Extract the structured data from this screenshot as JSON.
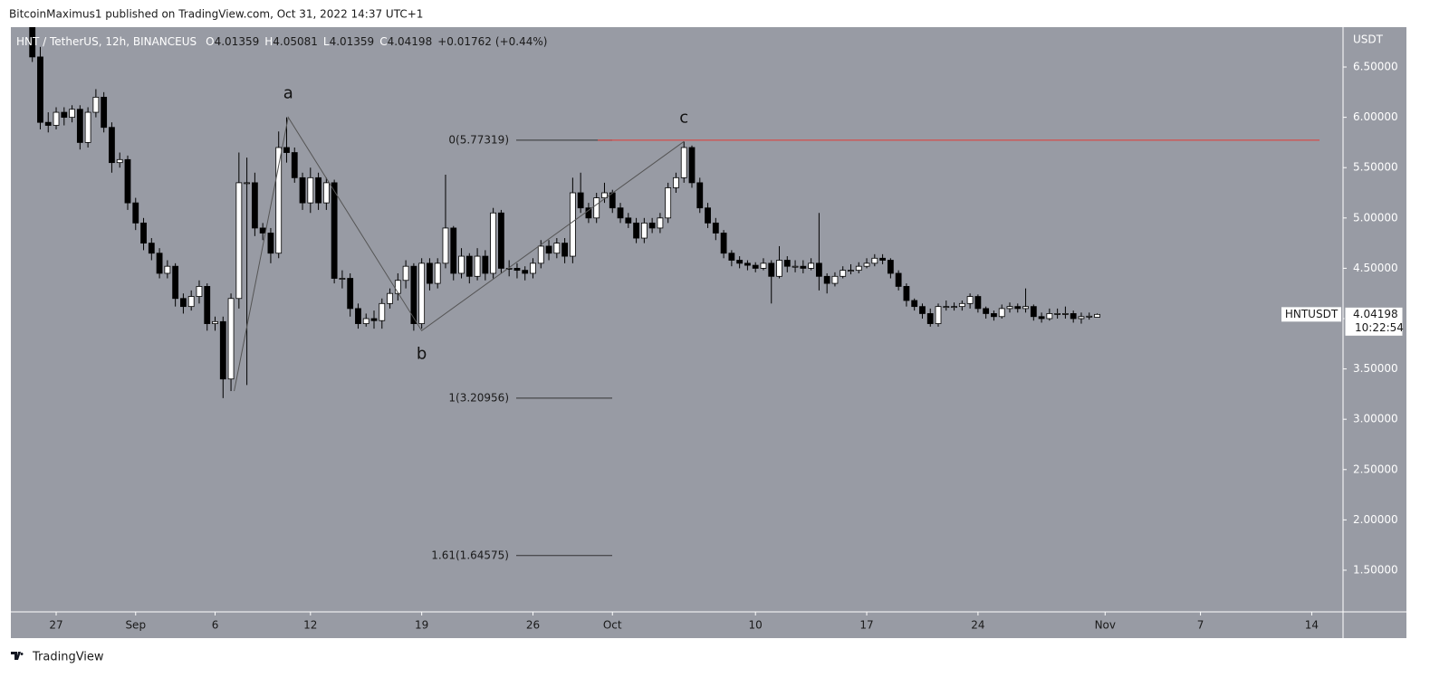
{
  "header": {
    "publisher": "BitcoinMaximus1 published on TradingView.com, Oct 31, 2022 14:37 UTC+1"
  },
  "footer": {
    "brand": "TradingView"
  },
  "chart_data": {
    "type": "candlestick",
    "title": "HNT / TetherUS, 12h, BINANCEUS",
    "ohlc_labels": [
      "O",
      "H",
      "L",
      "C"
    ],
    "change": "+0.01762",
    "change_pct": "(+0.44%)",
    "y_unit": "USDT",
    "symbol": "HNTUSDT",
    "countdown": "10:22:54",
    "up_color": "#ffffff",
    "down_color": "#000000",
    "x": [
      -1.5,
      -1,
      -0.5,
      0,
      0.5,
      1,
      1.5,
      2,
      2.5,
      3,
      3.5,
      4,
      4.5,
      5,
      5.5,
      6,
      6.5,
      7,
      7.5,
      8,
      8.5,
      9,
      9.5,
      10,
      10.5,
      11,
      11.5,
      12,
      12.5,
      13,
      13.5,
      14,
      14.5,
      15,
      15.5,
      16,
      16.5,
      17,
      17.5,
      18,
      18.5,
      19,
      19.5,
      20,
      20.5,
      21,
      21.5,
      22,
      22.5,
      23,
      23.5,
      24,
      24.5,
      25,
      25.5,
      26,
      26.5,
      27,
      27.5,
      28,
      28.5,
      29,
      29.5,
      30,
      30.5,
      31,
      31.5,
      32,
      32.5,
      33,
      33.5,
      34,
      34.5,
      35,
      35.5,
      36,
      36.5,
      37,
      37.5,
      38,
      38.5,
      39,
      39.5,
      40,
      40.5,
      41,
      41.5,
      42,
      42.5,
      43,
      43.5,
      44,
      44.5,
      45,
      45.5,
      46,
      46.5,
      47,
      47.5,
      48,
      48.5,
      49,
      49.5,
      50,
      50.5,
      51,
      51.5,
      52,
      52.5,
      53,
      53.5,
      54,
      54.5,
      55,
      55.5,
      56,
      56.5,
      57,
      57.5,
      58,
      58.5,
      59,
      59.5,
      60,
      60.5,
      61,
      61.5,
      62,
      62.5,
      63,
      63.5,
      64,
      64.5,
      65,
      65.5
    ],
    "open": [
      6.95,
      6.6,
      5.95,
      5.92,
      6.05,
      6.0,
      6.08,
      5.75,
      6.05,
      6.2,
      5.9,
      5.55,
      5.58,
      5.15,
      4.95,
      4.75,
      4.65,
      4.45,
      4.52,
      4.2,
      4.12,
      4.22,
      4.32,
      3.95,
      3.97,
      3.4,
      4.2,
      5.35,
      5.35,
      4.9,
      4.85,
      4.65,
      5.7,
      5.65,
      5.4,
      5.15,
      5.4,
      5.15,
      5.35,
      4.4,
      4.4,
      4.1,
      3.95,
      4.0,
      3.98,
      4.15,
      4.25,
      4.38,
      4.52,
      3.95,
      4.55,
      4.35,
      4.55,
      4.9,
      4.45,
      4.62,
      4.42,
      4.62,
      4.45,
      5.05,
      4.5,
      4.5,
      4.48,
      4.45,
      4.55,
      4.72,
      4.65,
      4.75,
      4.62,
      5.25,
      5.1,
      5.0,
      5.2,
      5.25,
      5.1,
      5.0,
      4.95,
      4.8,
      4.95,
      4.9,
      5.0,
      5.3,
      5.4,
      5.7,
      5.35,
      5.1,
      4.95,
      4.85,
      4.65,
      4.58,
      4.55,
      4.53,
      4.5,
      4.55,
      4.42,
      4.58,
      4.52,
      4.52,
      4.5,
      4.55,
      4.42,
      4.35,
      4.42,
      4.48,
      4.48,
      4.52,
      4.55,
      4.6,
      4.58,
      4.45,
      4.32,
      4.18,
      4.12,
      4.05,
      3.95,
      4.12,
      4.12,
      4.12,
      4.15,
      4.22,
      4.1,
      4.05,
      4.02,
      4.1,
      4.12,
      4.1,
      4.12,
      4.02,
      4.0,
      4.05,
      4.05,
      4.05,
      4.0,
      4.02,
      4.01359
    ],
    "high": [
      7.0,
      6.7,
      6.05,
      6.1,
      6.1,
      6.12,
      6.12,
      6.1,
      6.28,
      6.25,
      5.95,
      5.65,
      5.62,
      5.2,
      5.0,
      4.8,
      4.7,
      4.58,
      4.55,
      4.25,
      4.28,
      4.38,
      4.35,
      4.02,
      4.02,
      4.25,
      5.65,
      5.6,
      5.45,
      4.95,
      4.9,
      5.86,
      6.0,
      5.7,
      5.45,
      5.5,
      5.45,
      5.4,
      5.38,
      4.48,
      4.45,
      4.15,
      4.05,
      4.08,
      4.2,
      4.3,
      4.45,
      4.58,
      4.55,
      4.6,
      4.6,
      4.6,
      5.43,
      4.92,
      4.7,
      4.65,
      4.7,
      4.68,
      5.1,
      5.08,
      4.58,
      4.55,
      4.52,
      4.6,
      4.78,
      4.78,
      4.8,
      4.8,
      5.4,
      5.45,
      5.15,
      5.25,
      5.35,
      5.28,
      5.15,
      5.05,
      5.0,
      5.0,
      5.0,
      5.05,
      5.35,
      5.45,
      5.76,
      5.72,
      5.4,
      5.15,
      5.0,
      4.88,
      4.68,
      4.62,
      4.58,
      4.56,
      4.6,
      4.58,
      4.72,
      4.62,
      4.58,
      4.58,
      4.6,
      5.05,
      4.45,
      4.46,
      4.52,
      4.54,
      4.56,
      4.6,
      4.64,
      4.64,
      4.6,
      4.48,
      4.35,
      4.2,
      4.15,
      4.1,
      4.15,
      4.18,
      4.16,
      4.18,
      4.25,
      4.24,
      4.12,
      4.08,
      4.14,
      4.16,
      4.15,
      4.3,
      4.14,
      4.06,
      4.1,
      4.1,
      4.12,
      4.08,
      4.06,
      4.06,
      4.05081
    ],
    "low": [
      6.55,
      5.88,
      5.85,
      5.88,
      5.92,
      5.95,
      5.68,
      5.7,
      6.0,
      5.85,
      5.45,
      5.5,
      5.08,
      4.88,
      4.68,
      4.58,
      4.4,
      4.4,
      4.12,
      4.05,
      4.08,
      4.15,
      3.88,
      3.88,
      3.21,
      3.28,
      4.1,
      3.34,
      4.82,
      4.78,
      4.55,
      4.6,
      5.55,
      5.35,
      5.08,
      5.05,
      5.08,
      5.08,
      4.35,
      4.3,
      4.02,
      3.9,
      3.92,
      3.9,
      3.9,
      4.1,
      4.18,
      4.3,
      3.88,
      3.9,
      4.28,
      4.3,
      4.5,
      4.38,
      4.4,
      4.35,
      4.38,
      4.38,
      4.4,
      4.45,
      4.42,
      4.4,
      4.38,
      4.4,
      4.5,
      4.58,
      4.6,
      4.55,
      4.55,
      5.05,
      4.95,
      4.95,
      5.15,
      5.05,
      4.95,
      4.9,
      4.75,
      4.75,
      4.85,
      4.85,
      4.95,
      5.25,
      5.35,
      5.3,
      5.05,
      4.9,
      4.78,
      4.6,
      4.52,
      4.5,
      4.48,
      4.46,
      4.48,
      4.15,
      4.4,
      4.46,
      4.46,
      4.45,
      4.48,
      4.28,
      4.25,
      4.32,
      4.4,
      4.44,
      4.45,
      4.5,
      4.52,
      4.54,
      4.4,
      4.28,
      4.12,
      4.08,
      4.0,
      3.92,
      3.92,
      4.08,
      4.08,
      4.08,
      4.1,
      4.06,
      4.0,
      3.98,
      4.0,
      4.06,
      4.06,
      4.06,
      3.98,
      3.96,
      3.98,
      4.0,
      4.0,
      3.96,
      3.95,
      3.99,
      4.01359
    ],
    "close": [
      6.6,
      5.95,
      5.92,
      6.05,
      6.0,
      6.08,
      5.75,
      6.05,
      6.2,
      5.9,
      5.55,
      5.58,
      5.15,
      4.95,
      4.75,
      4.65,
      4.45,
      4.52,
      4.2,
      4.12,
      4.22,
      4.32,
      3.95,
      3.97,
      3.4,
      4.2,
      5.35,
      5.35,
      4.9,
      4.85,
      4.65,
      5.7,
      5.65,
      5.4,
      5.15,
      5.4,
      5.15,
      5.35,
      4.4,
      4.4,
      4.1,
      3.95,
      4.0,
      3.98,
      4.15,
      4.25,
      4.38,
      4.52,
      3.95,
      4.55,
      4.35,
      4.55,
      4.9,
      4.45,
      4.62,
      4.42,
      4.62,
      4.45,
      5.05,
      4.5,
      4.5,
      4.48,
      4.45,
      4.55,
      4.72,
      4.65,
      4.75,
      4.62,
      5.25,
      5.1,
      5.0,
      5.2,
      5.25,
      5.1,
      5.0,
      4.95,
      4.8,
      4.95,
      4.9,
      5.0,
      5.3,
      5.4,
      5.7,
      5.35,
      5.1,
      4.95,
      4.85,
      4.65,
      4.58,
      4.55,
      4.53,
      4.5,
      4.55,
      4.42,
      4.58,
      4.52,
      4.52,
      4.5,
      4.55,
      4.42,
      4.35,
      4.42,
      4.48,
      4.48,
      4.52,
      4.55,
      4.6,
      4.58,
      4.45,
      4.32,
      4.18,
      4.12,
      4.05,
      3.95,
      4.12,
      4.12,
      4.12,
      4.15,
      4.22,
      4.1,
      4.05,
      4.02,
      4.1,
      4.12,
      4.1,
      4.12,
      4.02,
      4.0,
      4.05,
      4.05,
      4.05,
      4.0,
      4.02,
      4.02436,
      4.04198
    ],
    "xlim": [
      -2.85,
      80.97
    ],
    "ylim": [
      1.086,
      6.896
    ],
    "xticks": [
      {
        "value": 0,
        "label": "27"
      },
      {
        "value": 5,
        "label": "Sep"
      },
      {
        "value": 10,
        "label": "6"
      },
      {
        "value": 16,
        "label": "12"
      },
      {
        "value": 23,
        "label": "19"
      },
      {
        "value": 30,
        "label": "26"
      },
      {
        "value": 35,
        "label": "Oct"
      },
      {
        "value": 44,
        "label": "10"
      },
      {
        "value": 51,
        "label": "17"
      },
      {
        "value": 58,
        "label": "24"
      },
      {
        "value": 66,
        "label": "Nov"
      },
      {
        "value": 72,
        "label": "7"
      },
      {
        "value": 79,
        "label": "14"
      }
    ],
    "yticks": [
      {
        "value": 1.5,
        "label": "1.50000"
      },
      {
        "value": 2,
        "label": "2.00000"
      },
      {
        "value": 2.5,
        "label": "2.50000"
      },
      {
        "value": 3,
        "label": "3.00000"
      },
      {
        "value": 3.5,
        "label": "3.50000"
      },
      {
        "value": 4,
        "label": "4.00000"
      },
      {
        "value": 4.5,
        "label": "4.50000"
      },
      {
        "value": 5,
        "label": "5.00000"
      },
      {
        "value": 5.5,
        "label": "5.50000"
      },
      {
        "value": 6,
        "label": "6.00000"
      },
      {
        "value": 6.5,
        "label": "6.50000"
      }
    ],
    "fib_levels": [
      {
        "label": "0(5.77319)",
        "value": 5.77319,
        "color": "#e53935"
      },
      {
        "label": "1(3.20956)",
        "value": 3.20956
      },
      {
        "label": "1.61(1.64575)",
        "value": 1.64575
      }
    ],
    "waves": {
      "labels": [
        null,
        "a",
        "b",
        "c"
      ],
      "x": [
        11.2,
        14.6,
        23.0,
        39.5
      ],
      "y": [
        3.28,
        6.0,
        3.88,
        5.76
      ]
    }
  }
}
